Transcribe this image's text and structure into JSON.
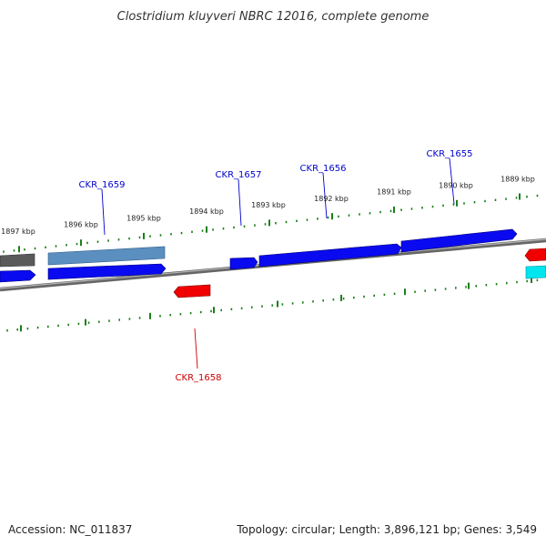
{
  "title": "Clostridium kluyveri NBRC 12016, complete genome",
  "footer": {
    "accession": "Accession: NC_011837",
    "topology": "Topology: circular; Length: 3,896,121 bp; Genes: 3,549"
  },
  "colors": {
    "forward_gene": "#0000ee",
    "reverse_gene": "#ee0000",
    "highlight_gene": "#4a86b8",
    "grey_gene": "#666666",
    "cyan_gene": "#00e5ee",
    "backbone": "#808080",
    "ticks": "#1a7f1a",
    "forward_label": "#0000cc",
    "reverse_label": "#cc0000"
  },
  "ticks": [
    {
      "label": "1897 kbp"
    },
    {
      "label": "1896 kbp"
    },
    {
      "label": "1895 kbp"
    },
    {
      "label": "1894 kbp"
    },
    {
      "label": "1893 kbp"
    },
    {
      "label": "1892 kbp"
    },
    {
      "label": "1891 kbp"
    },
    {
      "label": "1890 kbp"
    },
    {
      "label": "1889 kbp"
    }
  ],
  "genes": [
    {
      "name": "CKR_1659",
      "strand": "forward"
    },
    {
      "name": "CKR_1658",
      "strand": "reverse"
    },
    {
      "name": "CKR_1657",
      "strand": "forward"
    },
    {
      "name": "CKR_1656",
      "strand": "forward"
    },
    {
      "name": "CKR_1655",
      "strand": "forward"
    }
  ]
}
